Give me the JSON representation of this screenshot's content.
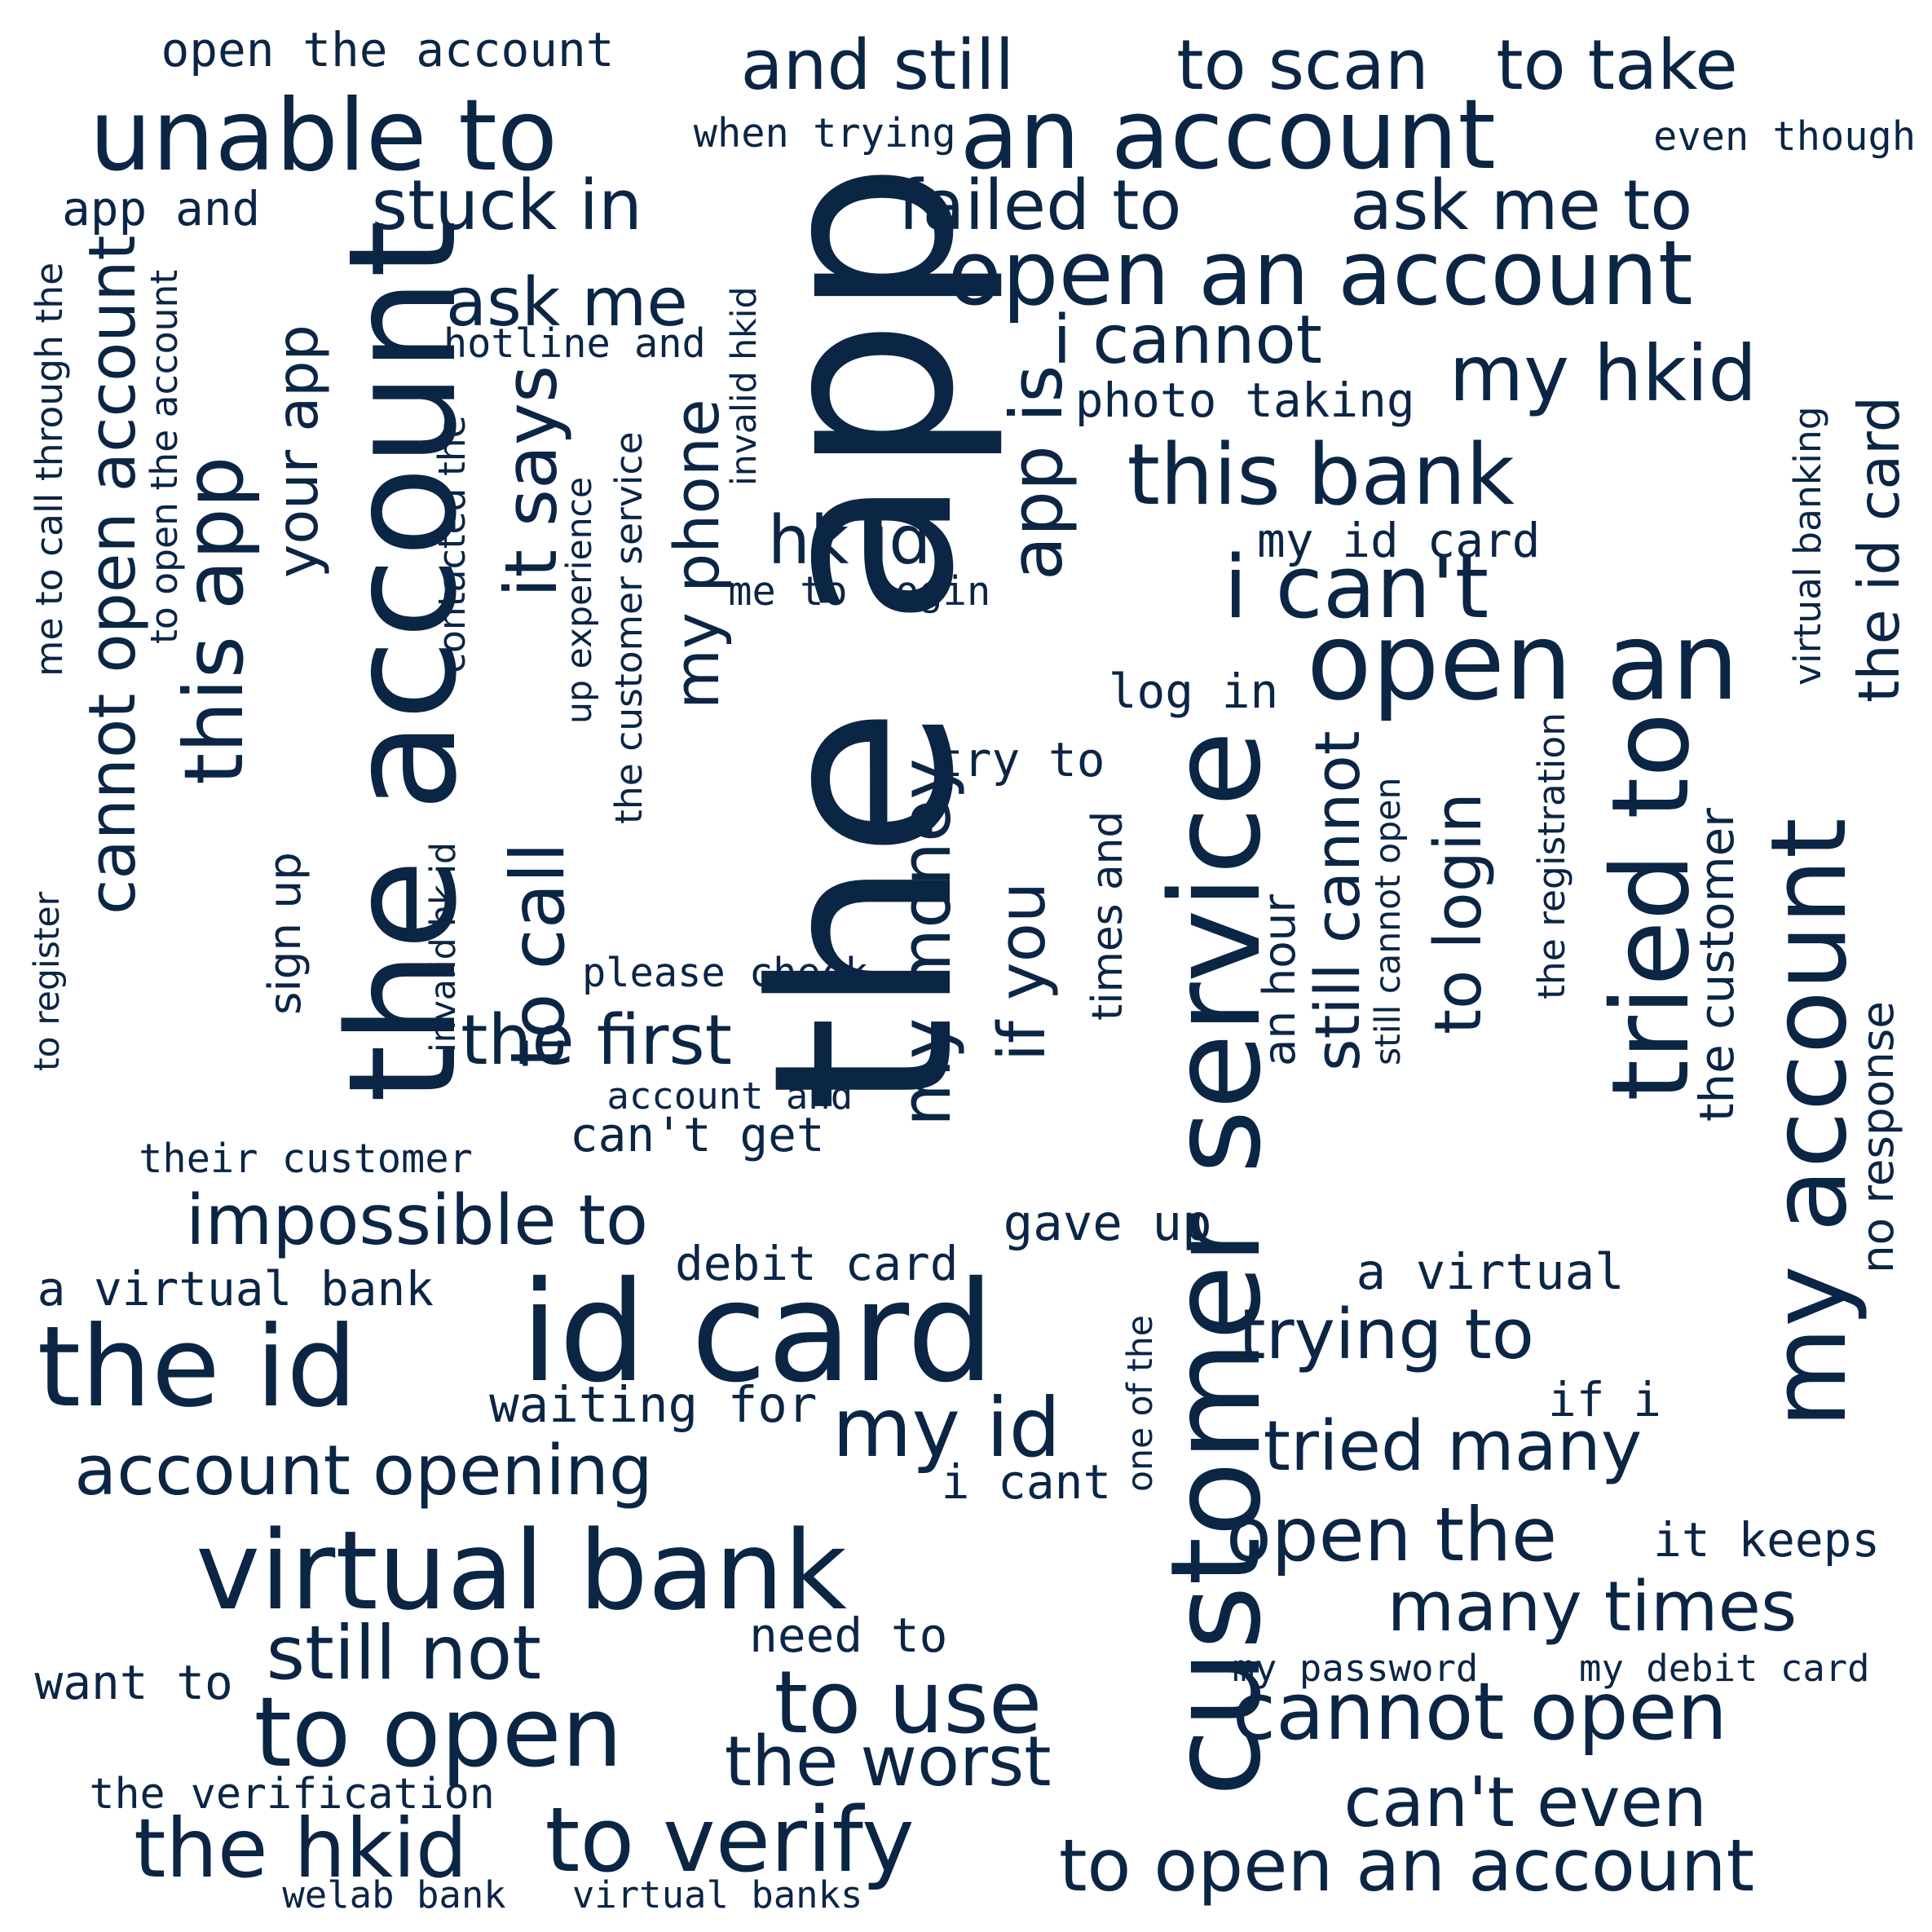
{
  "colors": {
    "background": "#ffffff",
    "text": "#0b2545"
  },
  "words": [
    {
      "text": "the app"
    },
    {
      "text": "the account"
    },
    {
      "text": "an account"
    },
    {
      "text": "id card"
    },
    {
      "text": "unable to"
    },
    {
      "text": "the id"
    },
    {
      "text": "customer service"
    },
    {
      "text": "virtual bank"
    },
    {
      "text": "open an account"
    },
    {
      "text": "open an"
    },
    {
      "text": "i can't"
    },
    {
      "text": "to open"
    },
    {
      "text": "tried to"
    },
    {
      "text": "my account"
    },
    {
      "text": "the hkid"
    },
    {
      "text": "to verify"
    },
    {
      "text": "cannot open"
    },
    {
      "text": "to open an account"
    },
    {
      "text": "to use"
    },
    {
      "text": "my id"
    },
    {
      "text": "the id card"
    },
    {
      "text": "this bank"
    },
    {
      "text": "and still"
    },
    {
      "text": "to scan"
    },
    {
      "text": "to take"
    },
    {
      "text": "failed to"
    },
    {
      "text": "ask me to"
    },
    {
      "text": "stuck in"
    },
    {
      "text": "my hkid"
    },
    {
      "text": "i cannot"
    },
    {
      "text": "ask me"
    },
    {
      "text": "hk id"
    },
    {
      "text": "it says"
    },
    {
      "text": "to call"
    },
    {
      "text": "the first"
    },
    {
      "text": "impossible to"
    },
    {
      "text": "account opening"
    },
    {
      "text": "still not"
    },
    {
      "text": "the worst"
    },
    {
      "text": "trying to"
    },
    {
      "text": "tried many"
    },
    {
      "text": "open the"
    },
    {
      "text": "many times"
    },
    {
      "text": "can't even"
    },
    {
      "text": "my money"
    },
    {
      "text": "if you"
    },
    {
      "text": "app is"
    },
    {
      "text": "this app"
    },
    {
      "text": "cannot open account"
    },
    {
      "text": "your app"
    },
    {
      "text": "my phone"
    },
    {
      "text": "still cannot"
    },
    {
      "text": "to login"
    },
    {
      "text": "app and"
    },
    {
      "text": "open the account"
    },
    {
      "text": "when trying"
    },
    {
      "text": "even though"
    },
    {
      "text": "photo taking"
    },
    {
      "text": "my id card"
    },
    {
      "text": "hotline and"
    },
    {
      "text": "me to login"
    },
    {
      "text": "log in"
    },
    {
      "text": "try to"
    },
    {
      "text": "please check"
    },
    {
      "text": "account and"
    },
    {
      "text": "can't get"
    },
    {
      "text": "their customer"
    },
    {
      "text": "a virtual bank"
    },
    {
      "text": "debit card"
    },
    {
      "text": "gave up"
    },
    {
      "text": "a virtual"
    },
    {
      "text": "waiting for"
    },
    {
      "text": "if i"
    },
    {
      "text": "i cant"
    },
    {
      "text": "it keeps"
    },
    {
      "text": "need to"
    },
    {
      "text": "want to"
    },
    {
      "text": "my password"
    },
    {
      "text": "my debit card"
    },
    {
      "text": "the verification"
    },
    {
      "text": "welab bank"
    },
    {
      "text": "virtual banks"
    },
    {
      "text": "me to call through the"
    },
    {
      "text": "to register"
    },
    {
      "text": "to open the account"
    },
    {
      "text": "sign up"
    },
    {
      "text": "invalid hk id"
    },
    {
      "text": "contacted the"
    },
    {
      "text": "up experience"
    },
    {
      "text": "the customer service"
    },
    {
      "text": "invalid hkid"
    },
    {
      "text": "times and"
    },
    {
      "text": "an hour"
    },
    {
      "text": "still cannot open"
    },
    {
      "text": "one of the"
    },
    {
      "text": "the registration"
    },
    {
      "text": "the customer"
    },
    {
      "text": "virtual banking"
    },
    {
      "text": "no response"
    }
  ]
}
